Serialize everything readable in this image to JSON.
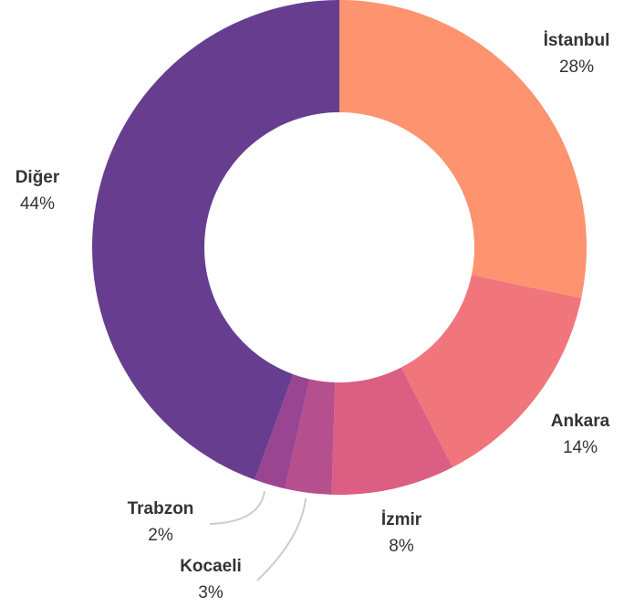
{
  "chart_data": {
    "type": "donut",
    "categories": [
      "İstanbul",
      "Ankara",
      "İzmir",
      "Kocaeli",
      "Trabzon",
      "Diğer"
    ],
    "values": [
      28,
      14,
      8,
      3,
      2,
      44
    ],
    "value_labels": [
      "28%",
      "14%",
      "8%",
      "3%",
      "2%",
      "44%"
    ],
    "colors": [
      "#fe9370",
      "#f0767c",
      "#dc5e82",
      "#b64f8d",
      "#9a4592",
      "#673e8f"
    ]
  }
}
